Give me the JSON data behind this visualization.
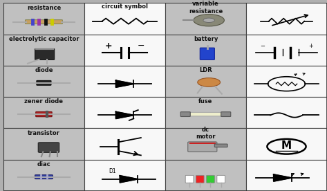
{
  "bg_color": "#d8d8d8",
  "cell_bg_photo": "#c8c8c8",
  "cell_bg_symbol": "#ffffff",
  "border_color": "#555555",
  "text_color": "#000000",
  "col0_labels": [
    "resistance",
    "electrolytic capacitor",
    "diode",
    "zener diode",
    "transistor",
    "diac"
  ],
  "col2_labels": [
    "variable\nresistance",
    "battery",
    "LDR",
    "fuse",
    "dc\nmotor",
    ""
  ],
  "col1_header": "circuit symbol",
  "label_fontsize": 6.0,
  "small_fontsize": 5.5
}
